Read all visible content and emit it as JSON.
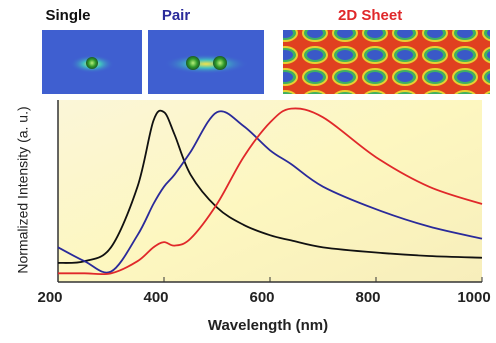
{
  "chart_data": {
    "type": "line",
    "xlabel": "Wavelength (nm)",
    "ylabel": "Normalized Intensity (a. u.)",
    "x": [
      200,
      250,
      300,
      350,
      380,
      400,
      420,
      450,
      500,
      550,
      600,
      640,
      700,
      800,
      900,
      1000
    ],
    "series": [
      {
        "name": "Single",
        "color": "#111111",
        "values": [
          0.11,
          0.12,
          0.2,
          0.55,
          0.93,
          0.98,
          0.85,
          0.62,
          0.43,
          0.33,
          0.27,
          0.24,
          0.2,
          0.17,
          0.15,
          0.14
        ]
      },
      {
        "name": "Pair",
        "color": "#2a2a9a",
        "values": [
          0.2,
          0.12,
          0.06,
          0.27,
          0.45,
          0.55,
          0.62,
          0.75,
          0.98,
          0.9,
          0.76,
          0.68,
          0.55,
          0.42,
          0.32,
          0.25
        ]
      },
      {
        "name": "2D Sheet",
        "color": "#e0282a",
        "values": [
          0.05,
          0.05,
          0.05,
          0.12,
          0.2,
          0.23,
          0.21,
          0.25,
          0.45,
          0.72,
          0.92,
          1.0,
          0.95,
          0.72,
          0.55,
          0.45
        ]
      }
    ],
    "xlim": [
      200,
      1000
    ],
    "ylim": [
      0,
      1.05
    ],
    "xticks": [
      200,
      400,
      600,
      800,
      1000
    ]
  }
}
